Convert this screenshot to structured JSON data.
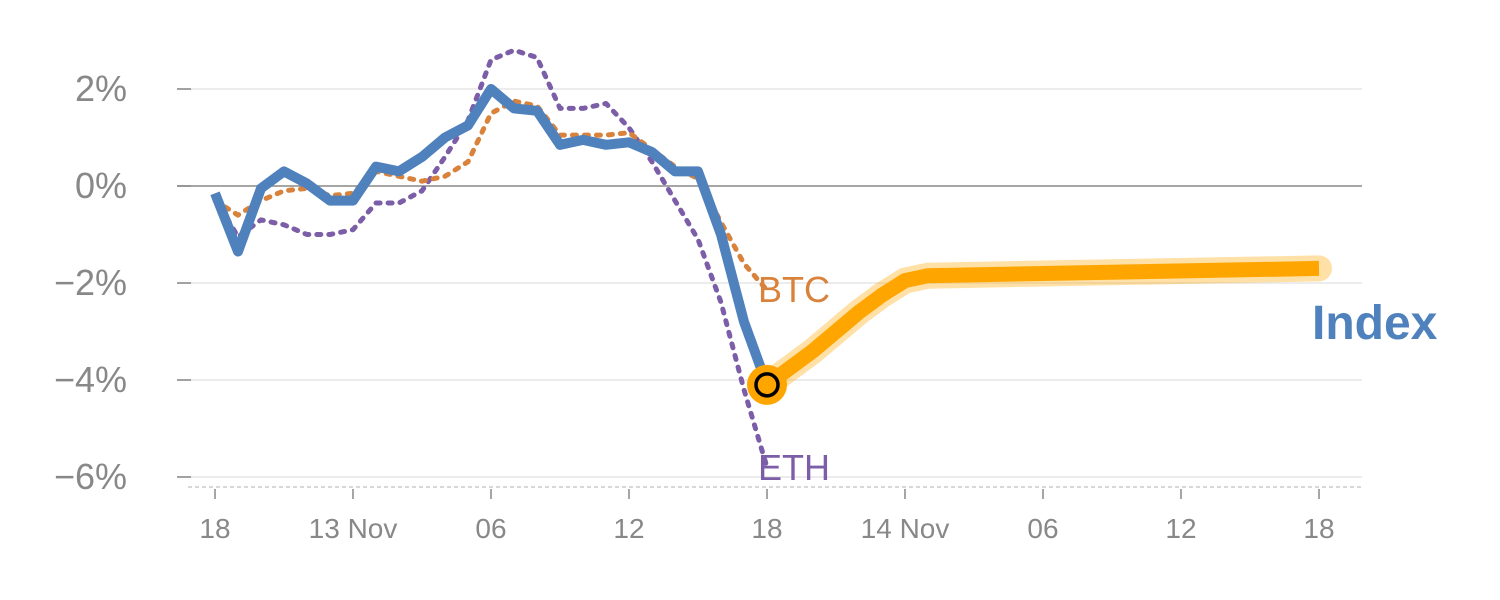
{
  "chart_data": {
    "type": "line",
    "x_tick_labels": [
      "18",
      "13 Nov",
      "06",
      "12",
      "18",
      "14 Nov",
      "06",
      "12",
      "18"
    ],
    "x_tick_index": [
      0,
      6,
      12,
      18,
      24,
      30,
      36,
      42,
      48
    ],
    "y_ticks": [
      {
        "value": 2,
        "label": "2%"
      },
      {
        "value": 0,
        "label": "0%"
      },
      {
        "value": -2,
        "label": "−2%"
      },
      {
        "value": -4,
        "label": "−4%"
      },
      {
        "value": -6,
        "label": "−6%"
      }
    ],
    "ylim": [
      -6.25,
      3.0
    ],
    "xlim": [
      -1,
      49.5
    ],
    "series": [
      {
        "name": "Index",
        "color": "#4F81BD",
        "style": "solid",
        "x": [
          0,
          1,
          2,
          3,
          4,
          5,
          6,
          7,
          8,
          9,
          10,
          11,
          12,
          13,
          14,
          15,
          16,
          17,
          18,
          19,
          20,
          21,
          22,
          23,
          24
        ],
        "values": [
          -0.15,
          -1.35,
          -0.05,
          0.3,
          0.05,
          -0.3,
          -0.3,
          0.4,
          0.3,
          0.6,
          1.0,
          1.25,
          2.0,
          1.6,
          1.55,
          0.85,
          0.95,
          0.85,
          0.9,
          0.7,
          0.3,
          0.3,
          -1.0,
          -2.8,
          -4.1
        ]
      },
      {
        "name": "BTC",
        "color": "#D9823B",
        "style": "dotted",
        "x": [
          0,
          1,
          2,
          3,
          4,
          5,
          6,
          7,
          8,
          9,
          10,
          11,
          12,
          13,
          14,
          15,
          16,
          17,
          18,
          19,
          20,
          21,
          22,
          23,
          24
        ],
        "values": [
          -0.3,
          -0.6,
          -0.3,
          -0.1,
          -0.05,
          -0.2,
          -0.15,
          0.3,
          0.2,
          0.1,
          0.2,
          0.5,
          1.5,
          1.75,
          1.65,
          1.05,
          1.05,
          1.05,
          1.1,
          0.75,
          0.4,
          0.15,
          -0.75,
          -1.6,
          -2.15
        ]
      },
      {
        "name": "ETH",
        "color": "#7B5EA7",
        "style": "dotted",
        "x": [
          0,
          1,
          2,
          3,
          4,
          5,
          6,
          7,
          8,
          9,
          10,
          11,
          12,
          13,
          14,
          15,
          16,
          17,
          18,
          19,
          20,
          21,
          22,
          23,
          24
        ],
        "values": [
          -0.25,
          -1.05,
          -0.7,
          -0.8,
          -1.0,
          -1.0,
          -0.9,
          -0.35,
          -0.35,
          -0.1,
          0.6,
          1.35,
          2.6,
          2.8,
          2.65,
          1.6,
          1.6,
          1.7,
          1.2,
          0.5,
          -0.3,
          -1.1,
          -2.4,
          -4.2,
          -5.8
        ]
      }
    ],
    "forecast": {
      "name": "Index",
      "color": "#FFA500",
      "x": [
        24,
        25,
        26,
        27,
        28,
        29,
        30,
        31,
        48
      ],
      "values": [
        -4.1,
        -3.75,
        -3.4,
        -3.0,
        -2.6,
        -2.25,
        -1.95,
        -1.85,
        -1.7
      ]
    },
    "marker": {
      "x": 24,
      "value": -4.1
    },
    "labels": {
      "btc": "BTC",
      "eth": "ETH",
      "index": "Index"
    },
    "zero_line": true,
    "grid": true
  }
}
